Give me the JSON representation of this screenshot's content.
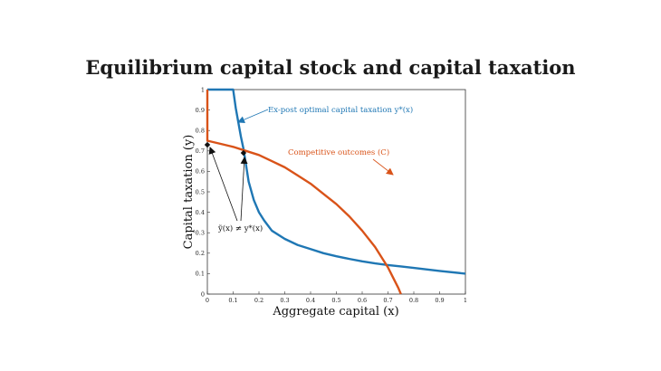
{
  "slide": {
    "title": "Equilibrium capital stock and capital taxation"
  },
  "chart_data": {
    "type": "line",
    "xlabel": "Aggregate capital (x)",
    "ylabel": "Capital taxation (y)",
    "xlim": [
      0,
      1
    ],
    "ylim": [
      0,
      1
    ],
    "x_ticks": [
      "0",
      "0.1",
      "0.2",
      "0.3",
      "0.4",
      "0.5",
      "0.6",
      "0.7",
      "0.8",
      "0.9",
      "1"
    ],
    "y_ticks": [
      "0",
      "0.1",
      "0.2",
      "0.3",
      "0.4",
      "0.5",
      "0.6",
      "0.7",
      "0.8",
      "0.9",
      "1"
    ],
    "grid": false,
    "colors": {
      "blue": "#1f77b4",
      "orange": "#d95319",
      "axis": "#333333"
    },
    "series": [
      {
        "name": "Ex-post optimal capital taxation y*(x)",
        "color": "#1f77b4",
        "x": [
          0.0,
          0.1,
          0.11,
          0.12,
          0.13,
          0.14,
          0.15,
          0.16,
          0.18,
          0.2,
          0.22,
          0.25,
          0.3,
          0.35,
          0.4,
          0.45,
          0.5,
          0.55,
          0.6,
          0.65,
          0.7,
          0.75,
          0.8,
          0.9,
          1.0
        ],
        "y": [
          1.0,
          1.0,
          0.91,
          0.84,
          0.77,
          0.71,
          0.63,
          0.55,
          0.46,
          0.4,
          0.36,
          0.31,
          0.27,
          0.24,
          0.22,
          0.2,
          0.185,
          0.172,
          0.16,
          0.15,
          0.142,
          0.135,
          0.128,
          0.113,
          0.1
        ]
      },
      {
        "name": "Competitive outcomes (C)",
        "color": "#d95319",
        "x": [
          0.0,
          0.0,
          0.05,
          0.1,
          0.15,
          0.2,
          0.25,
          0.3,
          0.35,
          0.4,
          0.45,
          0.5,
          0.55,
          0.6,
          0.65,
          0.7,
          0.72,
          0.74,
          0.75
        ],
        "y": [
          1.0,
          0.75,
          0.735,
          0.72,
          0.7,
          0.68,
          0.65,
          0.62,
          0.58,
          0.54,
          0.49,
          0.44,
          0.38,
          0.31,
          0.23,
          0.13,
          0.08,
          0.03,
          0.0
        ]
      }
    ],
    "points": [
      {
        "x": 0.0,
        "y": 0.73
      },
      {
        "x": 0.14,
        "y": 0.69
      }
    ],
    "annotations": {
      "blue_label": "Ex-post optimal capital taxation y*(x)",
      "orange_label": "Competitive outcomes (C)",
      "inequality_label": "ỹ(x) ≠ y*(x)"
    }
  }
}
